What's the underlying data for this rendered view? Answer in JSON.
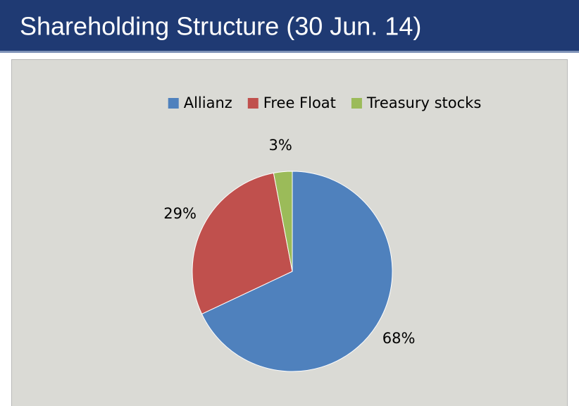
{
  "chart_data": {
    "type": "pie",
    "title": "Shareholding Structure (30 Jun. 14)",
    "categories": [
      "Allianz",
      "Free Float",
      "Treasury stocks"
    ],
    "values": [
      68,
      29,
      3
    ],
    "value_labels": [
      "68%",
      "29%",
      "3%"
    ],
    "colors": [
      "#4f81bd",
      "#c0504d",
      "#9bbb59"
    ],
    "legend": "top"
  }
}
